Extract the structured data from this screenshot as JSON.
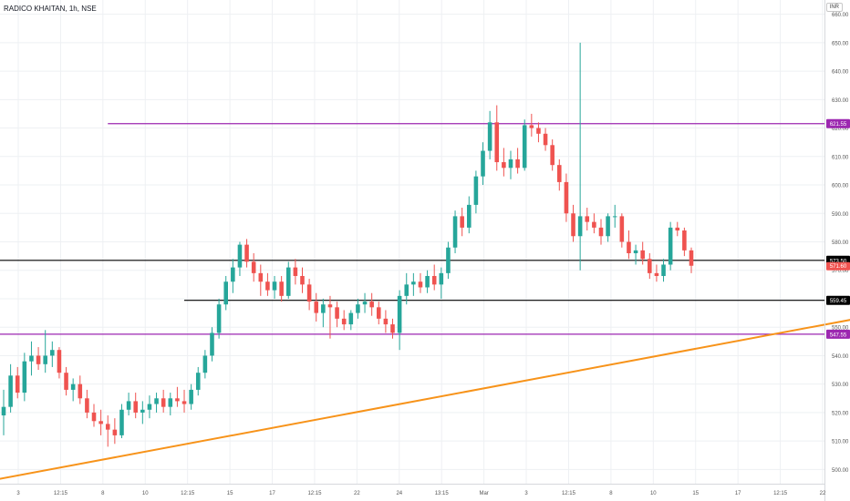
{
  "header": {
    "title": "RADICO KHAITAN, 1h, NSE",
    "currency": "INR"
  },
  "chart_data": {
    "type": "candlestick",
    "ylim": [
      495,
      665
    ],
    "price_ticks": [
      500,
      510,
      520,
      530,
      540,
      550,
      560,
      570,
      580,
      590,
      600,
      610,
      620,
      630,
      640,
      650,
      660
    ],
    "time_labels": [
      "3",
      "12:15",
      "8",
      "10",
      "12:15",
      "15",
      "17",
      "12:15",
      "22",
      "24",
      "13:15",
      "Mar",
      "3",
      "12:15",
      "8",
      "10",
      "15",
      "17",
      "12:15",
      "22"
    ],
    "grid": true,
    "candles": [
      {
        "o": 519,
        "h": 528,
        "l": 512,
        "c": 522
      },
      {
        "o": 522,
        "h": 537,
        "l": 520,
        "c": 533
      },
      {
        "o": 533,
        "h": 536,
        "l": 525,
        "c": 527
      },
      {
        "o": 527,
        "h": 541,
        "l": 524,
        "c": 538
      },
      {
        "o": 538,
        "h": 545,
        "l": 533,
        "c": 540
      },
      {
        "o": 540,
        "h": 543,
        "l": 535,
        "c": 537
      },
      {
        "o": 537,
        "h": 549,
        "l": 534,
        "c": 540
      },
      {
        "o": 540,
        "h": 545,
        "l": 536,
        "c": 542
      },
      {
        "o": 542,
        "h": 543,
        "l": 532,
        "c": 534
      },
      {
        "o": 534,
        "h": 536,
        "l": 526,
        "c": 528
      },
      {
        "o": 528,
        "h": 532,
        "l": 524,
        "c": 530
      },
      {
        "o": 530,
        "h": 533,
        "l": 523,
        "c": 525
      },
      {
        "o": 525,
        "h": 528,
        "l": 518,
        "c": 520
      },
      {
        "o": 520,
        "h": 523,
        "l": 515,
        "c": 517
      },
      {
        "o": 517,
        "h": 521,
        "l": 512,
        "c": 516
      },
      {
        "o": 516,
        "h": 519,
        "l": 508,
        "c": 514
      },
      {
        "o": 514,
        "h": 518,
        "l": 509,
        "c": 512
      },
      {
        "o": 512,
        "h": 523,
        "l": 511,
        "c": 521
      },
      {
        "o": 521,
        "h": 527,
        "l": 519,
        "c": 524
      },
      {
        "o": 524,
        "h": 527,
        "l": 518,
        "c": 520
      },
      {
        "o": 520,
        "h": 524,
        "l": 516,
        "c": 521
      },
      {
        "o": 521,
        "h": 526,
        "l": 518,
        "c": 523
      },
      {
        "o": 523,
        "h": 527,
        "l": 520,
        "c": 525
      },
      {
        "o": 525,
        "h": 528,
        "l": 520,
        "c": 522
      },
      {
        "o": 522,
        "h": 527,
        "l": 519,
        "c": 525
      },
      {
        "o": 525,
        "h": 529,
        "l": 522,
        "c": 524
      },
      {
        "o": 524,
        "h": 528,
        "l": 520,
        "c": 523
      },
      {
        "o": 523,
        "h": 530,
        "l": 521,
        "c": 528
      },
      {
        "o": 528,
        "h": 536,
        "l": 526,
        "c": 534
      },
      {
        "o": 534,
        "h": 542,
        "l": 532,
        "c": 540
      },
      {
        "o": 540,
        "h": 550,
        "l": 538,
        "c": 548
      },
      {
        "o": 548,
        "h": 560,
        "l": 546,
        "c": 558
      },
      {
        "o": 558,
        "h": 568,
        "l": 556,
        "c": 566
      },
      {
        "o": 566,
        "h": 574,
        "l": 562,
        "c": 571
      },
      {
        "o": 571,
        "h": 580,
        "l": 568,
        "c": 579
      },
      {
        "o": 579,
        "h": 581,
        "l": 571,
        "c": 573
      },
      {
        "o": 573,
        "h": 576,
        "l": 566,
        "c": 569
      },
      {
        "o": 569,
        "h": 572,
        "l": 561,
        "c": 566
      },
      {
        "o": 566,
        "h": 569,
        "l": 561,
        "c": 563
      },
      {
        "o": 563,
        "h": 568,
        "l": 560,
        "c": 566
      },
      {
        "o": 566,
        "h": 568,
        "l": 559,
        "c": 561
      },
      {
        "o": 561,
        "h": 573,
        "l": 560,
        "c": 571
      },
      {
        "o": 571,
        "h": 574,
        "l": 565,
        "c": 568
      },
      {
        "o": 568,
        "h": 571,
        "l": 562,
        "c": 565
      },
      {
        "o": 565,
        "h": 567,
        "l": 556,
        "c": 559
      },
      {
        "o": 559,
        "h": 562,
        "l": 552,
        "c": 555
      },
      {
        "o": 555,
        "h": 560,
        "l": 550,
        "c": 558
      },
      {
        "o": 558,
        "h": 561,
        "l": 546,
        "c": 557
      },
      {
        "o": 557,
        "h": 559,
        "l": 550,
        "c": 553
      },
      {
        "o": 553,
        "h": 556,
        "l": 549,
        "c": 551
      },
      {
        "o": 551,
        "h": 556,
        "l": 549,
        "c": 555
      },
      {
        "o": 555,
        "h": 560,
        "l": 553,
        "c": 558
      },
      {
        "o": 558,
        "h": 562,
        "l": 555,
        "c": 559
      },
      {
        "o": 559,
        "h": 562,
        "l": 554,
        "c": 557
      },
      {
        "o": 557,
        "h": 559,
        "l": 551,
        "c": 553
      },
      {
        "o": 553,
        "h": 556,
        "l": 548,
        "c": 551
      },
      {
        "o": 551,
        "h": 553,
        "l": 546,
        "c": 548
      },
      {
        "o": 548,
        "h": 563,
        "l": 542,
        "c": 561
      },
      {
        "o": 561,
        "h": 569,
        "l": 558,
        "c": 565
      },
      {
        "o": 565,
        "h": 569,
        "l": 561,
        "c": 566
      },
      {
        "o": 566,
        "h": 569,
        "l": 562,
        "c": 564
      },
      {
        "o": 564,
        "h": 570,
        "l": 562,
        "c": 568
      },
      {
        "o": 568,
        "h": 572,
        "l": 563,
        "c": 565
      },
      {
        "o": 565,
        "h": 571,
        "l": 560,
        "c": 569
      },
      {
        "o": 569,
        "h": 580,
        "l": 567,
        "c": 578
      },
      {
        "o": 578,
        "h": 591,
        "l": 576,
        "c": 589
      },
      {
        "o": 589,
        "h": 592,
        "l": 582,
        "c": 585
      },
      {
        "o": 585,
        "h": 596,
        "l": 583,
        "c": 593
      },
      {
        "o": 593,
        "h": 605,
        "l": 590,
        "c": 603
      },
      {
        "o": 603,
        "h": 615,
        "l": 600,
        "c": 612
      },
      {
        "o": 612,
        "h": 626,
        "l": 609,
        "c": 622
      },
      {
        "o": 622,
        "h": 628,
        "l": 605,
        "c": 608
      },
      {
        "o": 608,
        "h": 613,
        "l": 603,
        "c": 606
      },
      {
        "o": 606,
        "h": 612,
        "l": 602,
        "c": 609
      },
      {
        "o": 609,
        "h": 613,
        "l": 604,
        "c": 606
      },
      {
        "o": 606,
        "h": 623,
        "l": 605,
        "c": 621
      },
      {
        "o": 621,
        "h": 625,
        "l": 617,
        "c": 620
      },
      {
        "o": 620,
        "h": 622,
        "l": 615,
        "c": 618
      },
      {
        "o": 618,
        "h": 620,
        "l": 612,
        "c": 614
      },
      {
        "o": 614,
        "h": 616,
        "l": 605,
        "c": 607
      },
      {
        "o": 607,
        "h": 609,
        "l": 598,
        "c": 601
      },
      {
        "o": 601,
        "h": 604,
        "l": 587,
        "c": 590
      },
      {
        "o": 590,
        "h": 593,
        "l": 580,
        "c": 582
      },
      {
        "o": 582,
        "h": 650,
        "l": 570,
        "c": 589
      },
      {
        "o": 589,
        "h": 592,
        "l": 584,
        "c": 587
      },
      {
        "o": 587,
        "h": 590,
        "l": 583,
        "c": 585
      },
      {
        "o": 585,
        "h": 588,
        "l": 579,
        "c": 582
      },
      {
        "o": 582,
        "h": 590,
        "l": 580,
        "c": 589
      },
      {
        "o": 589,
        "h": 593,
        "l": 585,
        "c": 589
      },
      {
        "o": 589,
        "h": 590,
        "l": 578,
        "c": 580
      },
      {
        "o": 580,
        "h": 584,
        "l": 574,
        "c": 576
      },
      {
        "o": 576,
        "h": 579,
        "l": 572,
        "c": 577
      },
      {
        "o": 577,
        "h": 580,
        "l": 572,
        "c": 574
      },
      {
        "o": 574,
        "h": 576,
        "l": 567,
        "c": 569
      },
      {
        "o": 569,
        "h": 572,
        "l": 566,
        "c": 568
      },
      {
        "o": 568,
        "h": 574,
        "l": 566,
        "c": 572
      },
      {
        "o": 572,
        "h": 587,
        "l": 570,
        "c": 585
      },
      {
        "o": 585,
        "h": 587,
        "l": 582,
        "c": 584
      },
      {
        "o": 584,
        "h": 585,
        "l": 575,
        "c": 577
      },
      {
        "o": 577,
        "h": 578,
        "l": 569,
        "c": 571.6
      }
    ],
    "horizontal_lines": [
      {
        "price": 621.55,
        "label": "621.55",
        "color": "#9c27b0",
        "from_index": 15
      },
      {
        "price": 573.5,
        "label": "573.50",
        "color": "#000000",
        "from_index": 0
      },
      {
        "price": 559.45,
        "label": "559.45",
        "color": "#000000",
        "from_index": 26
      },
      {
        "price": 547.55,
        "label": "547.55",
        "color": "#9c27b0",
        "from_index": 0
      }
    ],
    "trendline": {
      "p1": {
        "index": -1,
        "price": 496.5
      },
      "p2": {
        "index": 178,
        "price": 578.2
      },
      "color": "#f7931a"
    },
    "last_price": {
      "value": 571.6,
      "label": "571.60",
      "color": "#ef5350"
    },
    "colors": {
      "up": "#26a69a",
      "down": "#ef5350",
      "grid": "#eef0f3",
      "axis_text": "#555555"
    }
  }
}
